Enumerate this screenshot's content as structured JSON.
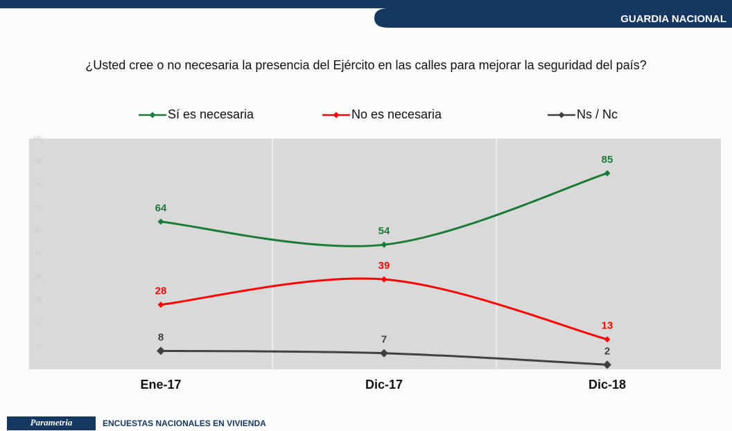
{
  "header": {
    "section": "GUARDIA NACIONAL"
  },
  "footer": {
    "brand": "Parametria",
    "caption": "ENCUESTAS NACIONALES EN VIVIENDA"
  },
  "chart_data": {
    "type": "line",
    "title": "¿Usted cree o no necesaria la presencia del Ejército en las calles para mejorar la seguridad del país?",
    "categories": [
      "Ene-17",
      "Dic-17",
      "Dic-18"
    ],
    "series": [
      {
        "name": "Sí es necesaria",
        "color": "#1b7a37",
        "values": [
          64,
          54,
          85
        ]
      },
      {
        "name": "No es necesaria",
        "color": "#ff0000",
        "values": [
          28,
          39,
          13
        ]
      },
      {
        "name": "Ns / Nc",
        "color": "#404040",
        "values": [
          8,
          7,
          2
        ]
      }
    ],
    "ylim": [
      0,
      100
    ],
    "yticks": [
      10,
      20,
      30,
      40,
      50,
      60,
      70,
      80,
      90,
      100
    ],
    "smooth": true
  }
}
